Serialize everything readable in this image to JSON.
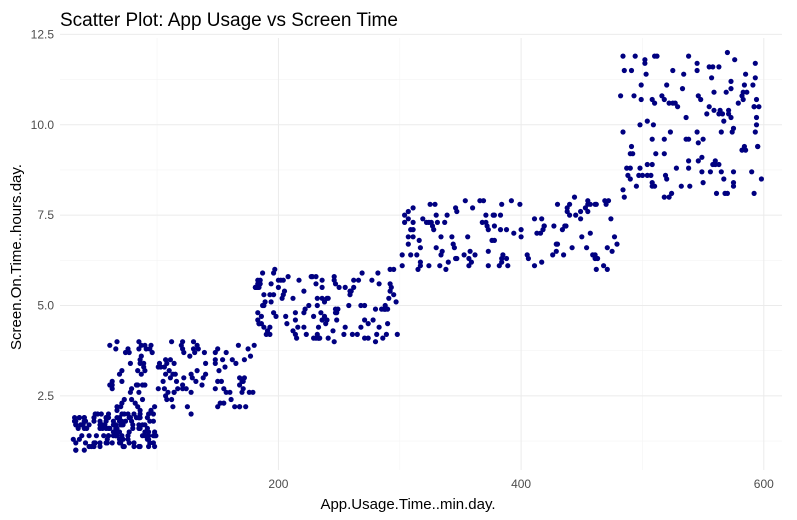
{
  "chart_data": {
    "type": "scatter",
    "title": "Scatter Plot: App Usage vs Screen Time",
    "xlabel": "App.Usage.Time..min.day.",
    "ylabel": "Screen.On.Time..hours.day.",
    "xlim": [
      20,
      615
    ],
    "ylim": [
      0.45,
      12.4
    ],
    "x_ticks": [
      200,
      400,
      600
    ],
    "x_tick_labels": [
      "200",
      "400",
      "600"
    ],
    "y_ticks": [
      2.5,
      5.0,
      7.5,
      10.0,
      12.5
    ],
    "y_tick_labels": [
      "2.5",
      "5.0",
      "7.5",
      "10.0",
      "12.5"
    ],
    "grid": true,
    "point_color": "#000080",
    "clusters": [
      {
        "x_range": [
          30,
          99
        ],
        "y_range": [
          1.0,
          2.0
        ],
        "count": 140
      },
      {
        "x_range": [
          60,
          180
        ],
        "y_range": [
          2.0,
          4.0
        ],
        "count": 140
      },
      {
        "x_range": [
          181,
          299
        ],
        "y_range": [
          4.0,
          6.0
        ],
        "count": 140
      },
      {
        "x_range": [
          301,
          380
        ],
        "y_range": [
          6.0,
          8.0
        ],
        "count": 70
      },
      {
        "x_range": [
          381,
          480
        ],
        "y_range": [
          6.0,
          8.0
        ],
        "count": 70
      },
      {
        "x_range": [
          481,
          600
        ],
        "y_range": [
          8.0,
          12.0
        ],
        "count": 140
      }
    ],
    "points": []
  }
}
